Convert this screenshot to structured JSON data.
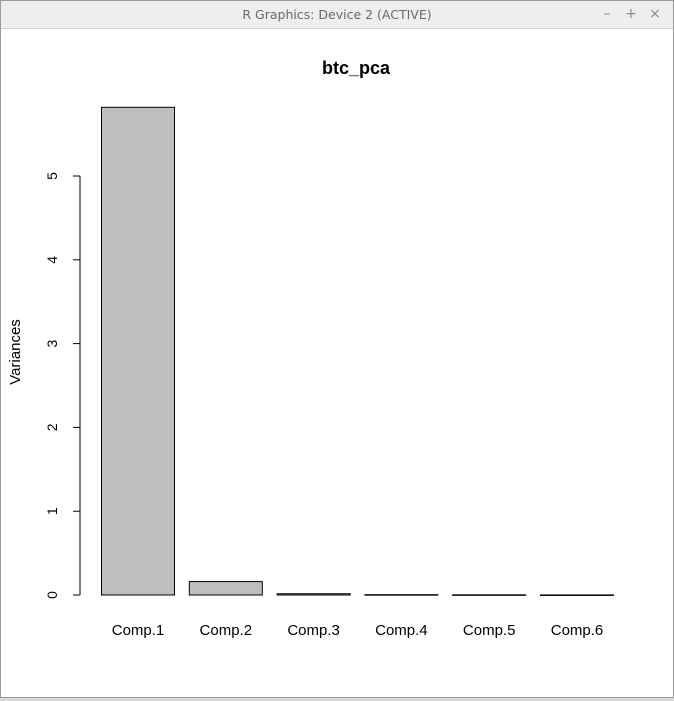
{
  "window": {
    "title": "R Graphics: Device 2 (ACTIVE)",
    "buttons": {
      "minimize": "–",
      "maximize": "+",
      "close": "×"
    }
  },
  "colors": {
    "bar_fill": "#bebebe",
    "bar_stroke": "#000000",
    "axis": "#000000"
  },
  "chart_data": {
    "type": "bar",
    "title": "btc_pca",
    "xlabel": "",
    "ylabel": "Variances",
    "categories": [
      "Comp.1",
      "Comp.2",
      "Comp.3",
      "Comp.4",
      "Comp.5",
      "Comp.6"
    ],
    "values": [
      5.82,
      0.16,
      0.015,
      0.004,
      0.002,
      0.001
    ],
    "ylim": [
      0,
      5.82
    ],
    "yticks": [
      0,
      1,
      2,
      3,
      4,
      5
    ],
    "grid": false
  }
}
